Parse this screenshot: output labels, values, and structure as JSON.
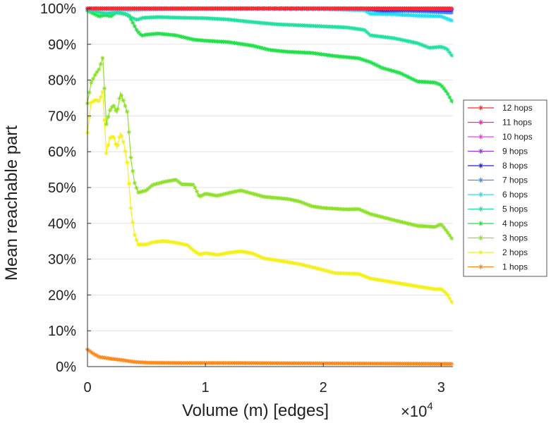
{
  "chart_data": {
    "type": "line",
    "xlabel": "Volume (m) [edges]",
    "ylabel": "Mean reachable part",
    "x_multiplier_label": "×10",
    "x_multiplier_exponent": "4",
    "xlim": [
      0,
      31000
    ],
    "ylim": [
      0,
      100
    ],
    "x_ticks": [
      0,
      10000,
      20000,
      30000
    ],
    "x_tick_labels": [
      "0",
      "1",
      "2",
      "3"
    ],
    "y_ticks": [
      0,
      10,
      20,
      30,
      40,
      50,
      60,
      70,
      80,
      90,
      100
    ],
    "y_tick_labels": [
      "0%",
      "10%",
      "20%",
      "30%",
      "40%",
      "50%",
      "60%",
      "70%",
      "80%",
      "90%",
      "100%"
    ],
    "grid": "horizontal",
    "legend_position": "right",
    "marker": "asterisk",
    "series": [
      {
        "name": "12 hops",
        "color": "#ff2b2b",
        "points": [
          [
            0,
            100
          ],
          [
            5000,
            100
          ],
          [
            10000,
            100
          ],
          [
            15000,
            100
          ],
          [
            20000,
            100
          ],
          [
            23500,
            100
          ],
          [
            27000,
            100
          ],
          [
            31000,
            100
          ]
        ]
      },
      {
        "name": "11 hops",
        "color": "#ff1fa8",
        "points": [
          [
            0,
            100
          ],
          [
            5000,
            100
          ],
          [
            10000,
            100
          ],
          [
            15000,
            100
          ],
          [
            20000,
            100
          ],
          [
            23500,
            100
          ],
          [
            27000,
            100
          ],
          [
            31000,
            100
          ]
        ]
      },
      {
        "name": "10 hops",
        "color": "#f03cf0",
        "points": [
          [
            0,
            100
          ],
          [
            5000,
            100
          ],
          [
            10000,
            100
          ],
          [
            15000,
            100
          ],
          [
            20000,
            100
          ],
          [
            23500,
            100
          ],
          [
            27000,
            100
          ],
          [
            31000,
            100
          ]
        ]
      },
      {
        "name": "9 hops",
        "color": "#9933ee",
        "points": [
          [
            0,
            100
          ],
          [
            5000,
            100
          ],
          [
            10000,
            100
          ],
          [
            15000,
            100
          ],
          [
            20000,
            100
          ],
          [
            23500,
            100
          ],
          [
            27000,
            99.9
          ],
          [
            31000,
            99.8
          ]
        ]
      },
      {
        "name": "8 hops",
        "color": "#2222dd",
        "points": [
          [
            0,
            100
          ],
          [
            5000,
            100
          ],
          [
            10000,
            100
          ],
          [
            15000,
            100
          ],
          [
            20000,
            100
          ],
          [
            23500,
            100
          ],
          [
            25000,
            99.6
          ],
          [
            27000,
            99.7
          ],
          [
            29000,
            99.6
          ],
          [
            31000,
            99.5
          ]
        ]
      },
      {
        "name": "7 hops",
        "color": "#3d8ef5",
        "points": [
          [
            0,
            100
          ],
          [
            5000,
            100
          ],
          [
            10000,
            100
          ],
          [
            15000,
            100
          ],
          [
            20000,
            100
          ],
          [
            23500,
            99.8
          ],
          [
            25000,
            99.2
          ],
          [
            27000,
            99.3
          ],
          [
            29000,
            99.1
          ],
          [
            31000,
            98.8
          ]
        ]
      },
      {
        "name": "6 hops",
        "color": "#22e2f2",
        "points": [
          [
            0,
            99.9
          ],
          [
            2000,
            99.7
          ],
          [
            3500,
            99.6
          ],
          [
            5000,
            99.7
          ],
          [
            10000,
            99.8
          ],
          [
            15000,
            99.9
          ],
          [
            20000,
            99.8
          ],
          [
            23500,
            99.5
          ],
          [
            24000,
            98.5
          ],
          [
            26000,
            98.4
          ],
          [
            28000,
            98.0
          ],
          [
            30000,
            97.8
          ],
          [
            31000,
            96.5
          ]
        ]
      },
      {
        "name": "5 hops",
        "color": "#22e0a0",
        "points": [
          [
            0,
            99.5
          ],
          [
            700,
            99.2
          ],
          [
            1500,
            98.6
          ],
          [
            2500,
            98.8
          ],
          [
            3200,
            98.5
          ],
          [
            3700,
            97.5
          ],
          [
            4200,
            96.8
          ],
          [
            4700,
            97.4
          ],
          [
            6000,
            97.6
          ],
          [
            8000,
            97.4
          ],
          [
            10000,
            97.3
          ],
          [
            12000,
            96.9
          ],
          [
            14000,
            96.2
          ],
          [
            16000,
            95.6
          ],
          [
            18000,
            95.3
          ],
          [
            20000,
            95.0
          ],
          [
            22000,
            94.7
          ],
          [
            23500,
            94.0
          ],
          [
            24000,
            92.5
          ],
          [
            26000,
            91.7
          ],
          [
            28000,
            90.3
          ],
          [
            29000,
            89.0
          ],
          [
            30000,
            89.3
          ],
          [
            30500,
            88.7
          ],
          [
            31000,
            86.4
          ]
        ]
      },
      {
        "name": "4 hops",
        "color": "#22e04a",
        "points": [
          [
            0,
            99.4
          ],
          [
            500,
            98.6
          ],
          [
            1000,
            97.8
          ],
          [
            1500,
            98.2
          ],
          [
            2000,
            97.8
          ],
          [
            2500,
            99.1
          ],
          [
            3000,
            98.6
          ],
          [
            3500,
            98.1
          ],
          [
            3800,
            96.3
          ],
          [
            4200,
            93.8
          ],
          [
            4600,
            92.4
          ],
          [
            5000,
            92.7
          ],
          [
            6000,
            93.0
          ],
          [
            7500,
            92.5
          ],
          [
            9000,
            91.3
          ],
          [
            10000,
            91.0
          ],
          [
            12000,
            90.6
          ],
          [
            14000,
            89.6
          ],
          [
            15500,
            88.4
          ],
          [
            17000,
            87.9
          ],
          [
            19000,
            87.6
          ],
          [
            21000,
            86.7
          ],
          [
            23000,
            86.1
          ],
          [
            24000,
            85.0
          ],
          [
            25000,
            83.4
          ],
          [
            26500,
            82.0
          ],
          [
            28000,
            79.6
          ],
          [
            29500,
            79.3
          ],
          [
            30000,
            78.6
          ],
          [
            30500,
            76.5
          ],
          [
            31000,
            73.5
          ]
        ]
      },
      {
        "name": "3 hops",
        "color": "#8ee02a",
        "points": [
          [
            0,
            73.5
          ],
          [
            300,
            79.2
          ],
          [
            700,
            81.8
          ],
          [
            1000,
            83.1
          ],
          [
            1300,
            86.4
          ],
          [
            1600,
            67.7
          ],
          [
            1900,
            71.5
          ],
          [
            2200,
            73.1
          ],
          [
            2500,
            70.8
          ],
          [
            2800,
            76.4
          ],
          [
            3100,
            73.8
          ],
          [
            3400,
            70.8
          ],
          [
            3700,
            57.5
          ],
          [
            4000,
            51.3
          ],
          [
            4300,
            48.6
          ],
          [
            5000,
            49.2
          ],
          [
            5500,
            50.7
          ],
          [
            6500,
            51.6
          ],
          [
            7500,
            52.2
          ],
          [
            8000,
            50.9
          ],
          [
            9000,
            50.8
          ],
          [
            9500,
            47.4
          ],
          [
            10000,
            48.3
          ],
          [
            11000,
            47.7
          ],
          [
            12000,
            48.5
          ],
          [
            13000,
            49.2
          ],
          [
            14000,
            48.3
          ],
          [
            15000,
            47.4
          ],
          [
            17000,
            46.8
          ],
          [
            18000,
            46.1
          ],
          [
            19000,
            44.8
          ],
          [
            20000,
            44.3
          ],
          [
            22000,
            43.9
          ],
          [
            23000,
            44.0
          ],
          [
            24000,
            42.6
          ],
          [
            26000,
            40.9
          ],
          [
            28000,
            39.3
          ],
          [
            29500,
            39.0
          ],
          [
            30000,
            39.8
          ],
          [
            30500,
            37.7
          ],
          [
            31000,
            35.3
          ]
        ]
      },
      {
        "name": "2 hops",
        "color": "#f5f01a",
        "points": [
          [
            0,
            65.3
          ],
          [
            300,
            73.7
          ],
          [
            700,
            74.5
          ],
          [
            1000,
            74.1
          ],
          [
            1300,
            76.9
          ],
          [
            1600,
            59.6
          ],
          [
            1900,
            63.8
          ],
          [
            2200,
            64.4
          ],
          [
            2500,
            61.0
          ],
          [
            2800,
            65.2
          ],
          [
            3100,
            62.1
          ],
          [
            3400,
            56.2
          ],
          [
            3700,
            43.4
          ],
          [
            4000,
            36.8
          ],
          [
            4300,
            34.1
          ],
          [
            5000,
            34.1
          ],
          [
            5500,
            34.7
          ],
          [
            6500,
            35.1
          ],
          [
            7500,
            34.6
          ],
          [
            8500,
            33.9
          ],
          [
            9000,
            32.4
          ],
          [
            9500,
            31.3
          ],
          [
            10000,
            31.7
          ],
          [
            11000,
            31.2
          ],
          [
            12000,
            31.8
          ],
          [
            13000,
            32.2
          ],
          [
            14000,
            31.6
          ],
          [
            15000,
            30.2
          ],
          [
            17000,
            29.2
          ],
          [
            18000,
            28.6
          ],
          [
            19000,
            27.8
          ],
          [
            20000,
            27.0
          ],
          [
            21000,
            26.1
          ],
          [
            23000,
            25.9
          ],
          [
            24000,
            24.6
          ],
          [
            26000,
            23.5
          ],
          [
            28000,
            22.4
          ],
          [
            29500,
            21.6
          ],
          [
            30000,
            21.7
          ],
          [
            30500,
            20.3
          ],
          [
            31000,
            17.4
          ]
        ]
      },
      {
        "name": "1 hops",
        "color": "#ff8a1a",
        "points": [
          [
            0,
            4.8
          ],
          [
            500,
            3.6
          ],
          [
            1000,
            2.7
          ],
          [
            2000,
            2.2
          ],
          [
            3000,
            1.8
          ],
          [
            4000,
            1.3
          ],
          [
            5000,
            1.1
          ],
          [
            8000,
            1.0
          ],
          [
            12000,
            1.0
          ],
          [
            16000,
            0.95
          ],
          [
            20000,
            0.9
          ],
          [
            24000,
            0.85
          ],
          [
            28000,
            0.8
          ],
          [
            31000,
            0.75
          ]
        ]
      }
    ]
  }
}
